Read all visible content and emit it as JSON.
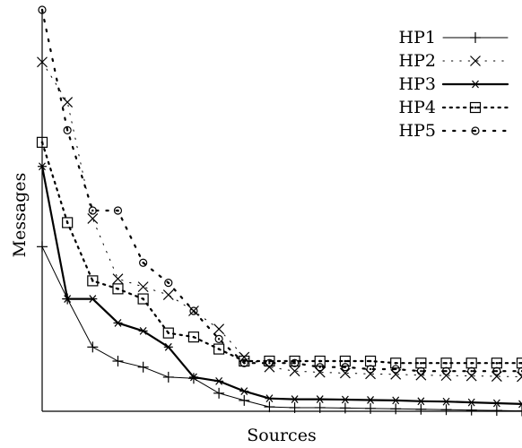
{
  "chart_data": {
    "type": "line",
    "title": "",
    "xlabel": "Sources",
    "ylabel": "Messages",
    "xlim": [
      0,
      19
    ],
    "ylim": [
      0,
      100
    ],
    "grid": false,
    "legend_position": "top-right",
    "x": [
      0,
      1,
      2,
      3,
      4,
      5,
      6,
      7,
      8,
      9,
      10,
      11,
      12,
      13,
      14,
      15,
      16,
      17,
      18,
      19
    ],
    "series": [
      {
        "name": "HP1",
        "color": "#000000",
        "style": "solid",
        "width": 1,
        "marker": "plus",
        "values": [
          41,
          28,
          16,
          12.5,
          11,
          8.5,
          8.2,
          4.5,
          2.7,
          1.1,
          0.9,
          0.9,
          0.8,
          0.7,
          0.6,
          0.5,
          0.4,
          0.3,
          0.2,
          0.1
        ]
      },
      {
        "name": "HP2",
        "color": "#000000",
        "style": "dotted-sparse",
        "width": 1,
        "marker": "cross",
        "values": [
          87,
          77,
          48,
          33,
          31,
          29,
          25,
          20.5,
          13.5,
          11,
          10,
          9.7,
          9.5,
          9.3,
          9.2,
          9.0,
          8.9,
          8.8,
          8.7,
          8.6
        ]
      },
      {
        "name": "HP3",
        "color": "#000000",
        "style": "solid",
        "width": 2.2,
        "marker": "star",
        "values": [
          61,
          28,
          28,
          22,
          20,
          16,
          8.5,
          7.5,
          5,
          3.2,
          3,
          3,
          2.9,
          2.8,
          2.7,
          2.5,
          2.4,
          2.2,
          2,
          1.8
        ]
      },
      {
        "name": "HP4",
        "color": "#000000",
        "style": "dotted-dense",
        "width": 2.2,
        "marker": "square",
        "values": [
          67,
          47,
          32.5,
          30.5,
          28,
          19.5,
          18.5,
          15.5,
          12.5,
          12.5,
          12.5,
          12.5,
          12.5,
          12.5,
          12,
          12,
          12,
          12,
          12,
          12
        ]
      },
      {
        "name": "HP5",
        "color": "#000000",
        "style": "dotted-wide",
        "width": 2.2,
        "marker": "circle",
        "values": [
          100,
          70,
          50,
          50,
          37,
          32,
          25,
          18,
          12,
          12,
          12,
          11,
          11,
          10.5,
          10.5,
          10,
          10,
          10,
          10,
          10
        ]
      }
    ]
  }
}
